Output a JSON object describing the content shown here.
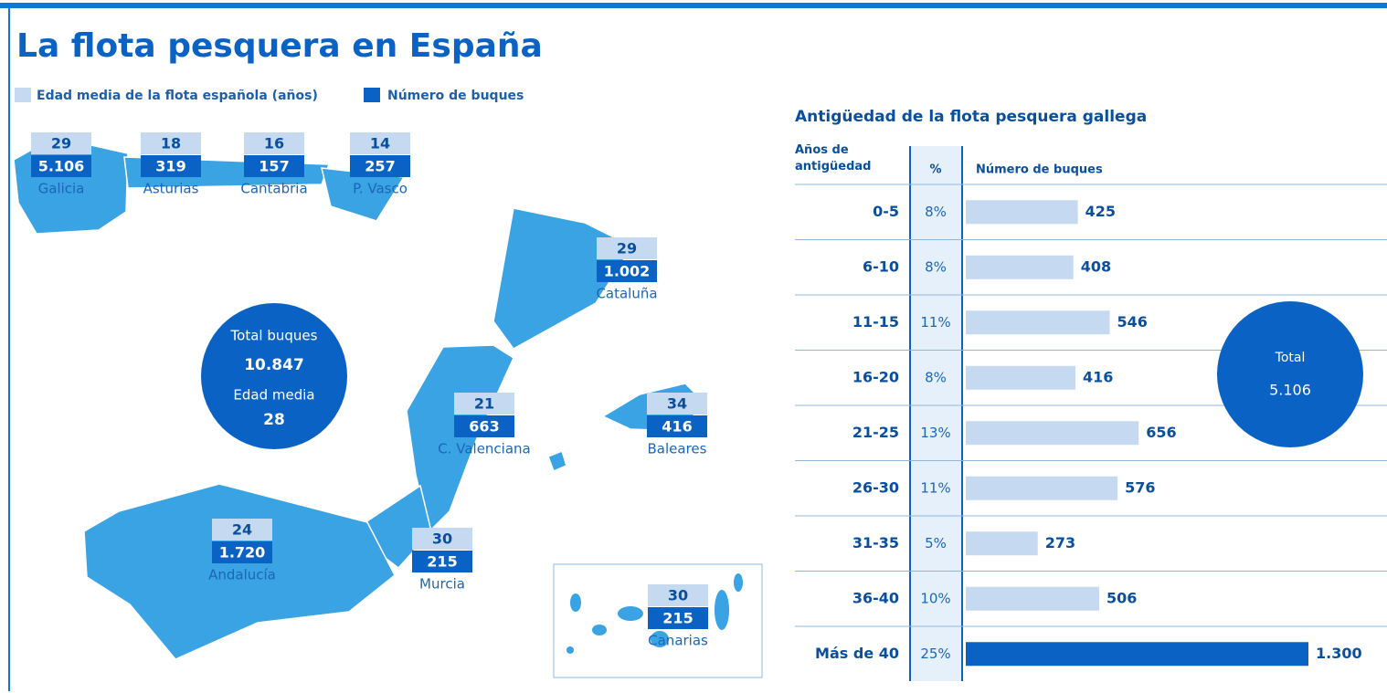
{
  "title": "La flota pesquera en España",
  "legend": {
    "labels": [
      "Edad media de la flota española (años)",
      "Número de buques"
    ],
    "colors": [
      "#c5d9f1",
      "#0a63c4"
    ]
  },
  "map": {
    "regions": {
      "names": [
        "Galicia",
        "Asturias",
        "Cantabria",
        "P. Vasco",
        "Cataluña",
        "C. Valenciana",
        "Baleares",
        "Andalucía",
        "Murcia",
        "Canarias"
      ],
      "ages": [
        29,
        18,
        16,
        14,
        29,
        21,
        34,
        24,
        30,
        30
      ],
      "ships": [
        5106,
        319,
        157,
        257,
        1002,
        663,
        416,
        1720,
        215,
        215
      ],
      "ships_labels": [
        "5.106",
        "319",
        "157",
        "257",
        "1.002",
        "663",
        "416",
        "1.720",
        "215",
        "215"
      ]
    },
    "total": {
      "ships_title": "Total buques",
      "ships": 10847,
      "ships_label": "10.847",
      "age_title": "Edad media",
      "age": 28
    }
  },
  "chart_data": {
    "type": "bar",
    "title": "Antigüedad de la flota pesquera gallega",
    "column_headers": [
      "Años de antigüedad",
      "%",
      "Número de buques"
    ],
    "categories": [
      "0-5",
      "6-10",
      "11-15",
      "16-20",
      "21-25",
      "26-30",
      "31-35",
      "36-40",
      "Más de 40"
    ],
    "percent_labels": [
      "8%",
      "8%",
      "11%",
      "8%",
      "13%",
      "11%",
      "5%",
      "10%",
      "25%"
    ],
    "values": [
      425,
      408,
      546,
      416,
      656,
      576,
      273,
      506,
      1300
    ],
    "value_labels": [
      "425",
      "408",
      "546",
      "416",
      "656",
      "576",
      "273",
      "506",
      "1.300"
    ],
    "colors": [
      "#c5d9f1",
      "#c5d9f1",
      "#c5d9f1",
      "#c5d9f1",
      "#c5d9f1",
      "#c5d9f1",
      "#c5d9f1",
      "#c5d9f1",
      "#0a63c4"
    ],
    "xlim": [
      0,
      1300
    ],
    "total": {
      "title": "Total",
      "value": 5106,
      "label": "5.106"
    }
  }
}
